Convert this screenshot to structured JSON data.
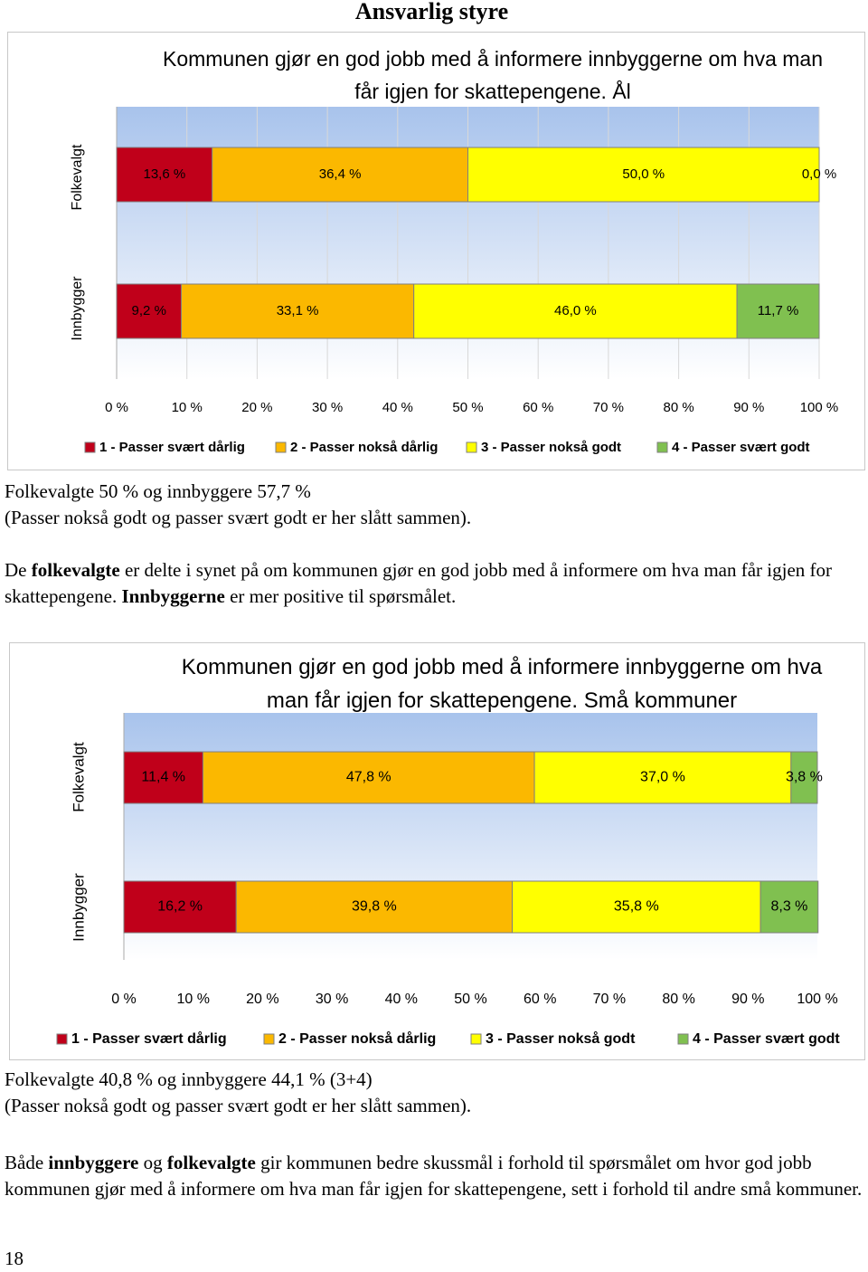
{
  "heading": "Ansvarlig styre",
  "chart_data": [
    {
      "type": "stacked-bar-horizontal",
      "title": "Kommunen gjør en god jobb med å informere innbyggerne om hva man får igjen for skattepengene. Ål",
      "categories": [
        "Folkevalgt",
        "Innbygger"
      ],
      "series": [
        {
          "name": "1 - Passer svært dårlig",
          "color": "#c0001a",
          "values": [
            13.6,
            9.2
          ],
          "value_labels": [
            "13,6 %",
            "9,2 %"
          ]
        },
        {
          "name": "2 - Passer nokså dårlig",
          "color": "#fbb800",
          "values": [
            36.4,
            33.1
          ],
          "value_labels": [
            "36,4 %",
            "33,1 %"
          ]
        },
        {
          "name": "3 - Passer nokså godt",
          "color": "#ffff00",
          "values": [
            50.0,
            46.0
          ],
          "value_labels": [
            "50,0 %",
            "46,0 %"
          ]
        },
        {
          "name": "4 - Passer svært godt",
          "color": "#80c050",
          "values": [
            0.0,
            11.7
          ],
          "value_labels": [
            "0,0 %",
            "11,7 %"
          ]
        }
      ],
      "xlim": [
        0,
        100
      ],
      "xticks": [
        {
          "value": 0,
          "label": "0 %"
        },
        {
          "value": 10,
          "label": "10 %"
        },
        {
          "value": 20,
          "label": "20 %"
        },
        {
          "value": 30,
          "label": "30 %"
        },
        {
          "value": 40,
          "label": "40 %"
        },
        {
          "value": 50,
          "label": "50 %"
        },
        {
          "value": 60,
          "label": "60 %"
        },
        {
          "value": 70,
          "label": "70 %"
        },
        {
          "value": 80,
          "label": "80 %"
        },
        {
          "value": 90,
          "label": "90 %"
        },
        {
          "value": 100,
          "label": "100 %"
        }
      ],
      "grid": true,
      "legend": "bottom"
    },
    {
      "type": "stacked-bar-horizontal",
      "title": "Kommunen gjør en god jobb med å informere innbyggerne om hva man får igjen for skattepengene. Små kommuner",
      "categories": [
        "Folkevalgt",
        "Innbygger"
      ],
      "series": [
        {
          "name": "1 - Passer svært dårlig",
          "color": "#c0001a",
          "values": [
            11.4,
            16.2
          ],
          "value_labels": [
            "11,4 %",
            "16,2 %"
          ]
        },
        {
          "name": "2 - Passer nokså dårlig",
          "color": "#fbb800",
          "values": [
            47.8,
            39.8
          ],
          "value_labels": [
            "47,8 %",
            "39,8 %"
          ]
        },
        {
          "name": "3 - Passer nokså godt",
          "color": "#ffff00",
          "values": [
            37.0,
            35.8
          ],
          "value_labels": [
            "37,0 %",
            "35,8 %"
          ]
        },
        {
          "name": "4 - Passer svært godt",
          "color": "#80c050",
          "values": [
            3.8,
            8.3
          ],
          "value_labels": [
            "3,8 %",
            "8,3 %"
          ]
        }
      ],
      "xlim": [
        0,
        100
      ],
      "xticks": [
        {
          "value": 0,
          "label": "0 %"
        },
        {
          "value": 10,
          "label": "10 %"
        },
        {
          "value": 20,
          "label": "20 %"
        },
        {
          "value": 30,
          "label": "30 %"
        },
        {
          "value": 40,
          "label": "40 %"
        },
        {
          "value": 50,
          "label": "50 %"
        },
        {
          "value": 60,
          "label": "60 %"
        },
        {
          "value": 70,
          "label": "70 %"
        },
        {
          "value": 80,
          "label": "80 %"
        },
        {
          "value": 90,
          "label": "90 %"
        },
        {
          "value": 100,
          "label": "100 %"
        }
      ],
      "grid": false,
      "legend": "bottom"
    }
  ],
  "notes_1": [
    "Folkevalgte 50 % og innbyggere 57,7 %",
    "(Passer nokså godt og passer svært godt er her slått sammen)."
  ],
  "paragraph_1": {
    "runs": [
      {
        "text": "De "
      },
      {
        "text": "folkevalgte",
        "bold": true
      },
      {
        "text": " er delte i synet på om kommunen gjør en god jobb med å informere om hva man får igjen for skattepengene. "
      },
      {
        "text": "Innbyggerne",
        "bold": true
      },
      {
        "text": " er mer positive til spørsmålet."
      }
    ]
  },
  "notes_2": [
    "Folkevalgte 40,8 % og innbyggere 44,1 % (3+4)",
    "(Passer nokså godt og passer svært godt er her slått sammen)."
  ],
  "paragraph_2": {
    "runs": [
      {
        "text": "Både "
      },
      {
        "text": "innbyggere",
        "bold": true
      },
      {
        "text": " og "
      },
      {
        "text": "folkevalgte",
        "bold": true
      },
      {
        "text": " gir kommunen bedre skussmål i forhold til spørsmålet om hvor god jobb kommunen gjør med å informere om hva man får igjen for skattepengene, sett i forhold til andre små kommuner."
      }
    ]
  },
  "page_number": "18"
}
